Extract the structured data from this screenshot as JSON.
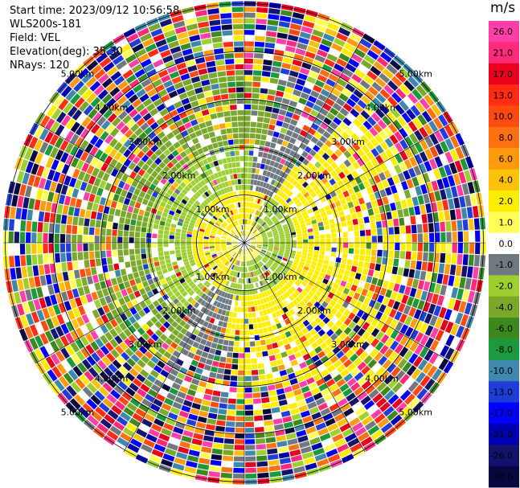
{
  "header": {
    "start_time": "Start time: 2023/09/12 10:56:58",
    "instrument": "WLS200s-181",
    "field": "Field: VEL",
    "elevation": "Elevation(deg): 35.30",
    "nrays": "NRays: 120"
  },
  "colorbar": {
    "unit": "m/s",
    "ticks": [
      "26.0",
      "21.0",
      "17.0",
      "13.0",
      "10.0",
      "8.0",
      "6.0",
      "4.0",
      "2.0",
      "1.0",
      "0.0",
      "-1.0",
      "-2.0",
      "-4.0",
      "-6.0",
      "-8.0",
      "-10.0",
      "-13.0",
      "-17.0",
      "-21.0",
      "-26.0",
      "-30.0"
    ],
    "colors": [
      "#ff3fa9",
      "#ff2a7a",
      "#e8001c",
      "#ff2b12",
      "#ff4a0f",
      "#ff7010",
      "#ff9a0e",
      "#ffc20c",
      "#ffee00",
      "#ffff55",
      "#ffffff",
      "#707880",
      "#9ccf30",
      "#79a82a",
      "#3c8a1e",
      "#1b9a3c",
      "#3e88ae",
      "#1f3ed9",
      "#0000ff",
      "#0000b0",
      "#14146e",
      "#080840"
    ]
  },
  "chart_data": {
    "type": "heatmap",
    "projection": "polar-ppi",
    "nrays": 120,
    "range_rings_km": [
      1,
      2,
      3,
      4,
      5
    ],
    "ring_labels": [
      "1.00km",
      "2.00km",
      "3.00km",
      "4.00km",
      "5.00km"
    ],
    "value_range": [
      -30,
      26
    ],
    "radial_lines_deg": [
      0,
      30,
      60,
      90,
      120,
      150,
      180,
      210,
      240,
      270,
      300,
      330
    ]
  }
}
